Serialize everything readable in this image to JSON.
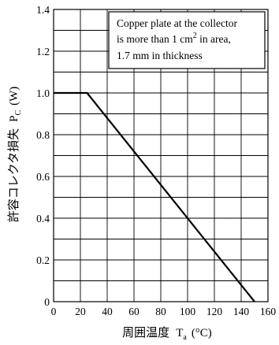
{
  "chart_data": {
    "type": "line",
    "xlabel_main": "周囲温度",
    "xlabel_symbol": "T",
    "xlabel_sub": "a",
    "xlabel_unit": "(°C)",
    "ylabel_main": "許容コレクタ損失",
    "ylabel_symbol": "P",
    "ylabel_sub": "C",
    "ylabel_unit": "(W)",
    "xlim": [
      0,
      160
    ],
    "ylim": [
      0,
      1.4
    ],
    "x_ticks": [
      "0",
      "20",
      "40",
      "60",
      "80",
      "100",
      "120",
      "140",
      "160"
    ],
    "y_ticks": [
      "0",
      "0.2",
      "0.4",
      "0.6",
      "0.8",
      "1.0",
      "1.2",
      "1.4"
    ],
    "grid": true,
    "series": [
      {
        "x": [
          0,
          25,
          150
        ],
        "y": [
          1.0,
          1.0,
          0
        ]
      }
    ],
    "annotation": {
      "line1": "Copper plate at the collector",
      "line2_pre": "is more than 1 cm",
      "line2_sup": "2",
      "line2_post": " in area,",
      "line3": "1.7 mm in thickness"
    }
  }
}
